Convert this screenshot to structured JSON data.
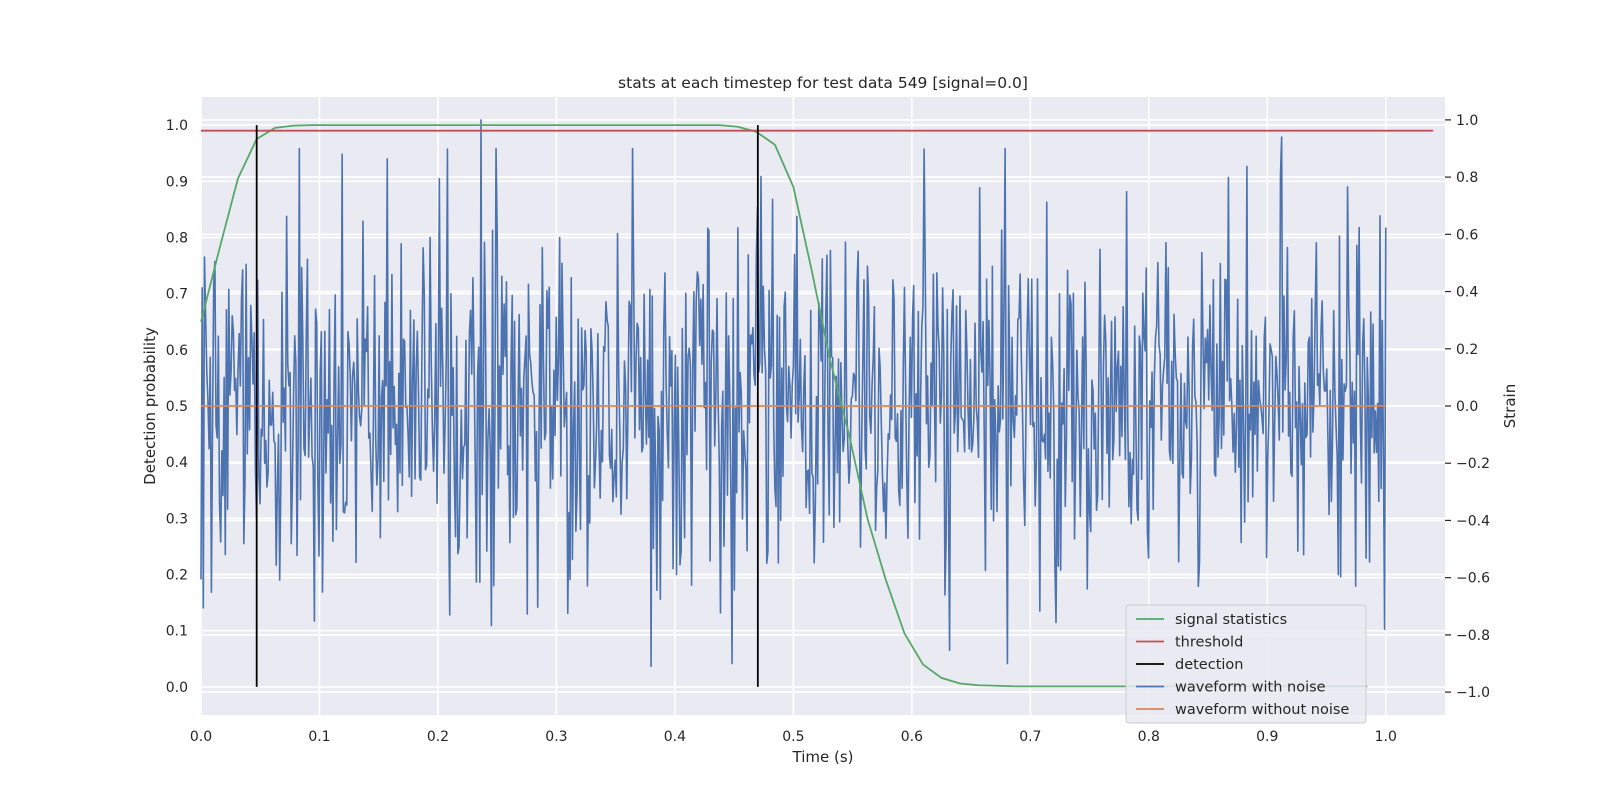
{
  "chart_data": {
    "type": "line",
    "title": "stats at each timestep for test data 549 [signal=0.0]",
    "xlabel": "Time (s)",
    "ylabel_left": "Detection probability",
    "ylabel_right": "Strain",
    "xlim": [
      0.0,
      1.05
    ],
    "ylim_left": [
      -0.05,
      1.05
    ],
    "ylim_right": [
      -1.08,
      1.08
    ],
    "x_ticks": [
      "0.0",
      "0.1",
      "0.2",
      "0.3",
      "0.4",
      "0.5",
      "0.6",
      "0.7",
      "0.8",
      "0.9",
      "1.0"
    ],
    "y_left_ticks": [
      "0.0",
      "0.1",
      "0.2",
      "0.3",
      "0.4",
      "0.5",
      "0.6",
      "0.7",
      "0.8",
      "0.9",
      "1.0"
    ],
    "y_right_ticks": [
      "−1.0",
      "−0.8",
      "−0.6",
      "−0.4",
      "−0.2",
      "0.0",
      "0.2",
      "0.4",
      "0.6",
      "0.8",
      "1.0"
    ],
    "grid": true,
    "legend_position": "bottom-right",
    "colors": {
      "signal_statistics": "#55a868",
      "threshold": "#c44e52",
      "detection": "#000000",
      "waveform_with_noise": "#4c72b0",
      "waveform_without_noise": "#dd8452",
      "background": "#eaeaf2",
      "grid": "#ffffff"
    },
    "series": [
      {
        "name": "signal statistics",
        "axis": "left",
        "x": [
          0.0,
          0.0156,
          0.0312,
          0.0469,
          0.0625,
          0.0781,
          0.0938,
          0.1094,
          0.125,
          0.25,
          0.375,
          0.4375,
          0.4531,
          0.4688,
          0.4844,
          0.5,
          0.5156,
          0.5312,
          0.5469,
          0.5625,
          0.5781,
          0.5938,
          0.6094,
          0.625,
          0.6406,
          0.6562,
          0.6719,
          0.6875,
          0.7031,
          0.75,
          0.8,
          0.9,
          0.9844
        ],
        "y": [
          0.65,
          0.78,
          0.905,
          0.975,
          0.995,
          0.999,
          1.0,
          1.0,
          1.0,
          1.0,
          1.0,
          1.0,
          0.997,
          0.988,
          0.965,
          0.89,
          0.74,
          0.58,
          0.45,
          0.3,
          0.19,
          0.095,
          0.04,
          0.016,
          0.006,
          0.003,
          0.002,
          0.001,
          0.001,
          0.001,
          0.001,
          0.001,
          0.001
        ]
      },
      {
        "name": "threshold",
        "axis": "left",
        "x": [
          0.0,
          1.04
        ],
        "y": [
          0.99,
          0.99
        ]
      },
      {
        "name": "detection",
        "axis": "left",
        "x": [
          0.047,
          0.47
        ],
        "y_range": [
          0.0,
          1.0
        ]
      },
      {
        "name": "waveform with noise",
        "axis": "right",
        "x_range": [
          0.0,
          1.0
        ],
        "summary": "white noise, 0 mean, std ~0.3, 2048 samples",
        "notable_points": [
          {
            "x": 0.236,
            "y": 1.0
          },
          {
            "x": 0.912,
            "y": 0.94
          },
          {
            "x": 0.119,
            "y": 0.88
          },
          {
            "x": 0.38,
            "y": -0.91
          },
          {
            "x": 0.999,
            "y": -0.78
          }
        ]
      },
      {
        "name": "waveform without noise",
        "axis": "right",
        "x": [
          0.0,
          1.0
        ],
        "y": [
          0.0,
          0.0
        ]
      }
    ]
  }
}
